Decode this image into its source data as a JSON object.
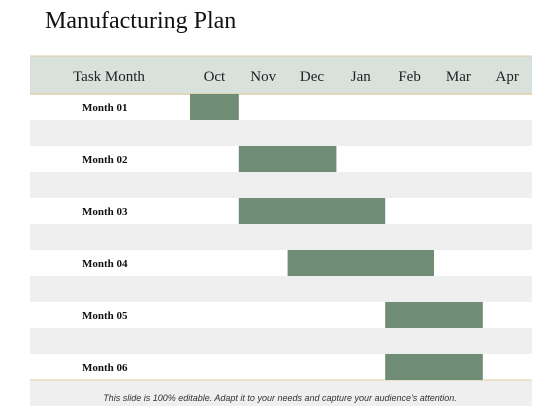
{
  "title": "Manufacturing Plan",
  "footer": "This slide is 100% editable. Adapt it to your needs and capture your audience's attention.",
  "colors": {
    "bar": "#6f8c74",
    "header_bg": "#d9e1dc",
    "stripe": "#efefef",
    "border": "#e0cfa5"
  },
  "chart_data": {
    "type": "gantt",
    "header_label": "Task Month",
    "columns": [
      "Oct",
      "Nov",
      "Dec",
      "Jan",
      "Feb",
      "Mar",
      "Apr"
    ],
    "tasks": [
      {
        "label": "Month 01",
        "start": 0,
        "end": 1
      },
      {
        "label": "Month 02",
        "start": 1,
        "end": 3
      },
      {
        "label": "Month 03",
        "start": 1,
        "end": 4
      },
      {
        "label": "Month 04",
        "start": 2,
        "end": 5
      },
      {
        "label": "Month 05",
        "start": 4,
        "end": 6
      },
      {
        "label": "Month 06",
        "start": 4,
        "end": 6
      }
    ]
  }
}
